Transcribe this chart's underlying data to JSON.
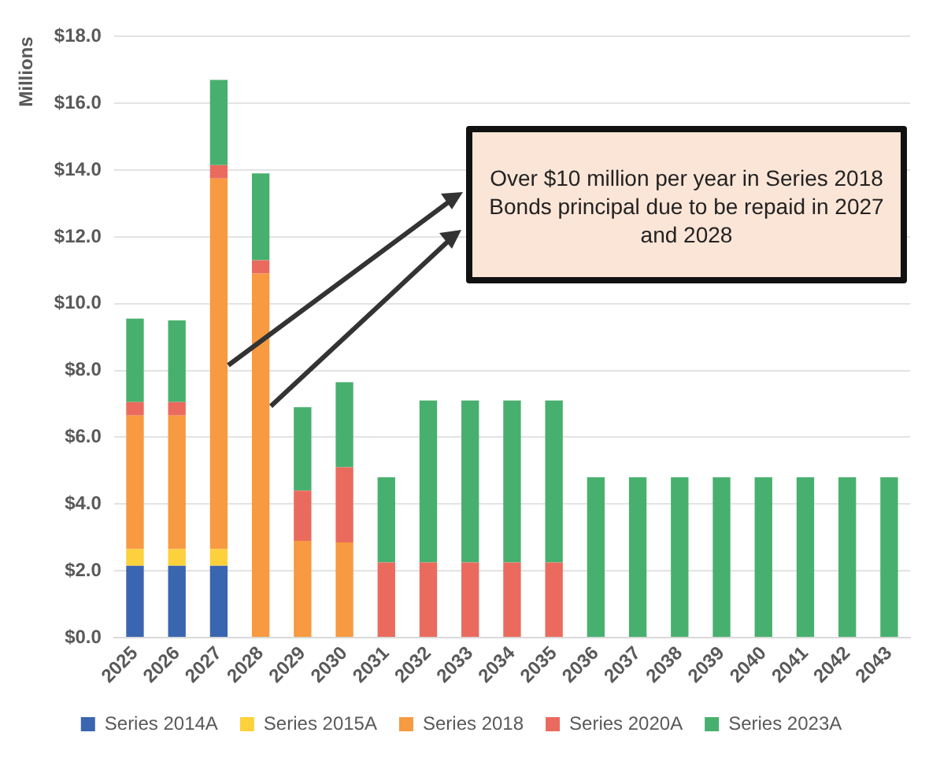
{
  "chart_data": {
    "type": "bar",
    "stacked": true,
    "ylabel": "Millions",
    "categories": [
      "2025",
      "2026",
      "2027",
      "2028",
      "2029",
      "2030",
      "2031",
      "2032",
      "2033",
      "2034",
      "2035",
      "2036",
      "2037",
      "2038",
      "2039",
      "2040",
      "2041",
      "2042",
      "2043"
    ],
    "series": [
      {
        "name": "Series 2014A",
        "color": "#3a65b0",
        "values": [
          2.15,
          2.15,
          2.15,
          null,
          null,
          null,
          null,
          null,
          null,
          null,
          null,
          null,
          null,
          null,
          null,
          null,
          null,
          null,
          null
        ]
      },
      {
        "name": "Series 2015A",
        "color": "#fdd13c",
        "values": [
          0.5,
          0.5,
          0.5,
          null,
          null,
          null,
          null,
          null,
          null,
          null,
          null,
          null,
          null,
          null,
          null,
          null,
          null,
          null,
          null
        ]
      },
      {
        "name": "Series 2018",
        "color": "#f79a41",
        "values": [
          4.0,
          4.0,
          11.1,
          10.9,
          2.9,
          2.85,
          null,
          null,
          null,
          null,
          null,
          null,
          null,
          null,
          null,
          null,
          null,
          null,
          null
        ]
      },
      {
        "name": "Series 2020A",
        "color": "#ea6b5e",
        "values": [
          0.4,
          0.4,
          0.4,
          0.4,
          1.5,
          2.25,
          2.25,
          2.25,
          2.25,
          2.25,
          2.25,
          null,
          null,
          null,
          null,
          null,
          null,
          null,
          null
        ]
      },
      {
        "name": "Series 2023A",
        "color": "#48b06e",
        "values": [
          2.5,
          2.45,
          2.55,
          2.6,
          2.5,
          2.55,
          2.55,
          4.85,
          4.85,
          4.85,
          4.85,
          4.8,
          4.8,
          4.8,
          4.8,
          4.8,
          4.8,
          4.8,
          4.8
        ]
      }
    ],
    "ylim": [
      0,
      18
    ],
    "yticks": [
      {
        "value": 0,
        "label": "$0.0"
      },
      {
        "value": 2,
        "label": "$2.0"
      },
      {
        "value": 4,
        "label": "$4.0"
      },
      {
        "value": 6,
        "label": "$6.0"
      },
      {
        "value": 8,
        "label": "$8.0"
      },
      {
        "value": 10,
        "label": "$10.0"
      },
      {
        "value": 12,
        "label": "$12.0"
      },
      {
        "value": 14,
        "label": "$14.0"
      },
      {
        "value": 16,
        "label": "$16.0"
      },
      {
        "value": 18,
        "label": "$18.0"
      }
    ],
    "grid": "y",
    "legend": "bottom",
    "annotations": [
      "Over $10 million per year in Series 2018 Bonds principal due to be repaid in 2027 and 2028"
    ]
  }
}
